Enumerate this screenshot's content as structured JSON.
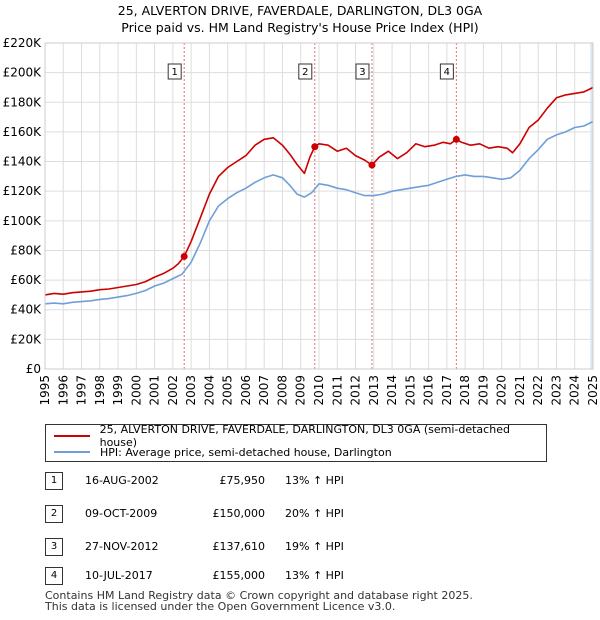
{
  "title": "25, ALVERTON DRIVE, FAVERDALE, DARLINGTON, DL3 0GA",
  "subtitle": "Price paid vs. HM Land Registry's House Price Index (HPI)",
  "colors": {
    "property": "#cc0000",
    "hpi": "#6f9fd8",
    "marker_line": "#e07070",
    "shade": "#dce6f5"
  },
  "chart_data": {
    "type": "line",
    "title": "25, ALVERTON DRIVE, FAVERDALE, DARLINGTON, DL3 0GA",
    "subtitle": "Price paid vs. HM Land Registry's House Price Index (HPI)",
    "xlabel": "",
    "ylabel": "",
    "xlim": [
      1995,
      2025
    ],
    "ylim": [
      0,
      220000
    ],
    "grid": true,
    "legend_position": "bottom",
    "y_ticks": [
      0,
      20000,
      40000,
      60000,
      80000,
      100000,
      120000,
      140000,
      160000,
      180000,
      200000,
      220000
    ],
    "y_tick_labels": [
      "£0",
      "£20K",
      "£40K",
      "£60K",
      "£80K",
      "£100K",
      "£120K",
      "£140K",
      "£160K",
      "£180K",
      "£200K",
      "£220K"
    ],
    "x_ticks": [
      1995,
      1996,
      1997,
      1998,
      1999,
      2000,
      2001,
      2002,
      2003,
      2004,
      2005,
      2006,
      2007,
      2008,
      2009,
      2010,
      2011,
      2012,
      2013,
      2014,
      2015,
      2016,
      2017,
      2018,
      2019,
      2020,
      2021,
      2022,
      2023,
      2024,
      2025
    ],
    "x_tick_labels": [
      "1995",
      "1996",
      "1997",
      "1998",
      "1999",
      "2000",
      "2001",
      "2002",
      "2003",
      "2004",
      "2005",
      "2006",
      "2007",
      "2008",
      "2009",
      "2010",
      "2011",
      "2012",
      "2013",
      "2014",
      "2015",
      "2016",
      "2017",
      "2018",
      "2019",
      "2020",
      "2021",
      "2022",
      "2023",
      "2024",
      "2025"
    ],
    "series": [
      {
        "name": "25, ALVERTON DRIVE, FAVERDALE, DARLINGTON, DL3 0GA (semi-detached house)",
        "x": [
          1995,
          1995.5,
          1996,
          1996.5,
          1997,
          1997.5,
          1998,
          1998.5,
          1999,
          1999.5,
          2000,
          2000.5,
          2001,
          2001.5,
          2002,
          2002.3,
          2002.62,
          2003,
          2003.5,
          2004,
          2004.5,
          2005,
          2005.5,
          2006,
          2006.5,
          2007,
          2007.5,
          2008,
          2008.4,
          2008.8,
          2009.2,
          2009.5,
          2009.77,
          2010,
          2010.5,
          2011,
          2011.5,
          2012,
          2012.5,
          2012.9,
          2013.3,
          2013.8,
          2014.3,
          2014.8,
          2015.3,
          2015.8,
          2016.3,
          2016.8,
          2017.2,
          2017.52,
          2017.8,
          2018.3,
          2018.8,
          2019.3,
          2019.8,
          2020.3,
          2020.6,
          2021,
          2021.5,
          2022,
          2022.5,
          2023,
          2023.5,
          2024,
          2024.5,
          2025
        ],
        "values": [
          50000,
          51000,
          50500,
          51500,
          52000,
          52500,
          53500,
          54000,
          55000,
          56000,
          57000,
          59000,
          62000,
          64500,
          68000,
          71000,
          75950,
          86000,
          102000,
          118000,
          130000,
          136000,
          140000,
          144000,
          151000,
          155000,
          156000,
          151000,
          145000,
          138000,
          132000,
          143000,
          150000,
          152000,
          151000,
          147000,
          149000,
          144000,
          141000,
          137610,
          143000,
          147000,
          142000,
          146000,
          152000,
          150000,
          151000,
          153000,
          152000,
          155000,
          153000,
          151000,
          152000,
          149000,
          150000,
          149000,
          146000,
          152000,
          163000,
          168000,
          176000,
          183000,
          185000,
          186000,
          187000,
          190000
        ]
      },
      {
        "name": "HPI: Average price, semi-detached house, Darlington",
        "x": [
          1995,
          1995.5,
          1996,
          1996.5,
          1997,
          1997.5,
          1998,
          1998.5,
          1999,
          1999.5,
          2000,
          2000.5,
          2001,
          2001.5,
          2002,
          2002.5,
          2003,
          2003.5,
          2004,
          2004.5,
          2005,
          2005.5,
          2006,
          2006.5,
          2007,
          2007.5,
          2008,
          2008.4,
          2008.8,
          2009.2,
          2009.6,
          2010,
          2010.5,
          2011,
          2011.5,
          2012,
          2012.5,
          2013,
          2013.5,
          2014,
          2014.5,
          2015,
          2015.5,
          2016,
          2016.5,
          2017,
          2017.5,
          2018,
          2018.5,
          2019,
          2019.5,
          2020,
          2020.5,
          2021,
          2021.5,
          2022,
          2022.5,
          2023,
          2023.5,
          2024,
          2024.5,
          2025
        ],
        "values": [
          44000,
          44500,
          44000,
          45000,
          45500,
          46000,
          47000,
          47500,
          48500,
          49500,
          51000,
          53000,
          56000,
          58000,
          61000,
          64000,
          72000,
          85000,
          100000,
          110000,
          115000,
          119000,
          122000,
          126000,
          129000,
          131000,
          129000,
          124000,
          118000,
          116000,
          119000,
          125000,
          124000,
          122000,
          121000,
          119000,
          117000,
          117000,
          118000,
          120000,
          121000,
          122000,
          123000,
          124000,
          126000,
          128000,
          130000,
          131000,
          130000,
          130000,
          129000,
          128000,
          129000,
          134000,
          142000,
          148000,
          155000,
          158000,
          160000,
          163000,
          164000,
          167000
        ]
      }
    ],
    "sales": [
      {
        "label": "1",
        "date": "16-AUG-2002",
        "x": 2002.62,
        "price": 75950,
        "price_text": "£75,950",
        "hpi_text": "13% ↑ HPI"
      },
      {
        "label": "2",
        "date": "09-OCT-2009",
        "x": 2009.77,
        "price": 150000,
        "price_text": "£150,000",
        "hpi_text": "20% ↑ HPI"
      },
      {
        "label": "3",
        "date": "27-NOV-2012",
        "x": 2012.9,
        "price": 137610,
        "price_text": "£137,610",
        "hpi_text": "19% ↑ HPI"
      },
      {
        "label": "4",
        "date": "10-JUL-2017",
        "x": 2017.52,
        "price": 155000,
        "price_text": "£155,000",
        "hpi_text": "13% ↑ HPI"
      }
    ]
  },
  "legend": {
    "property_label": "25, ALVERTON DRIVE, FAVERDALE, DARLINGTON, DL3 0GA (semi-detached house)",
    "hpi_label": "HPI: Average price, semi-detached house, Darlington"
  },
  "footer": {
    "line1": "Contains HM Land Registry data © Crown copyright and database right 2025.",
    "line2": "This data is licensed under the Open Government Licence v3.0."
  }
}
